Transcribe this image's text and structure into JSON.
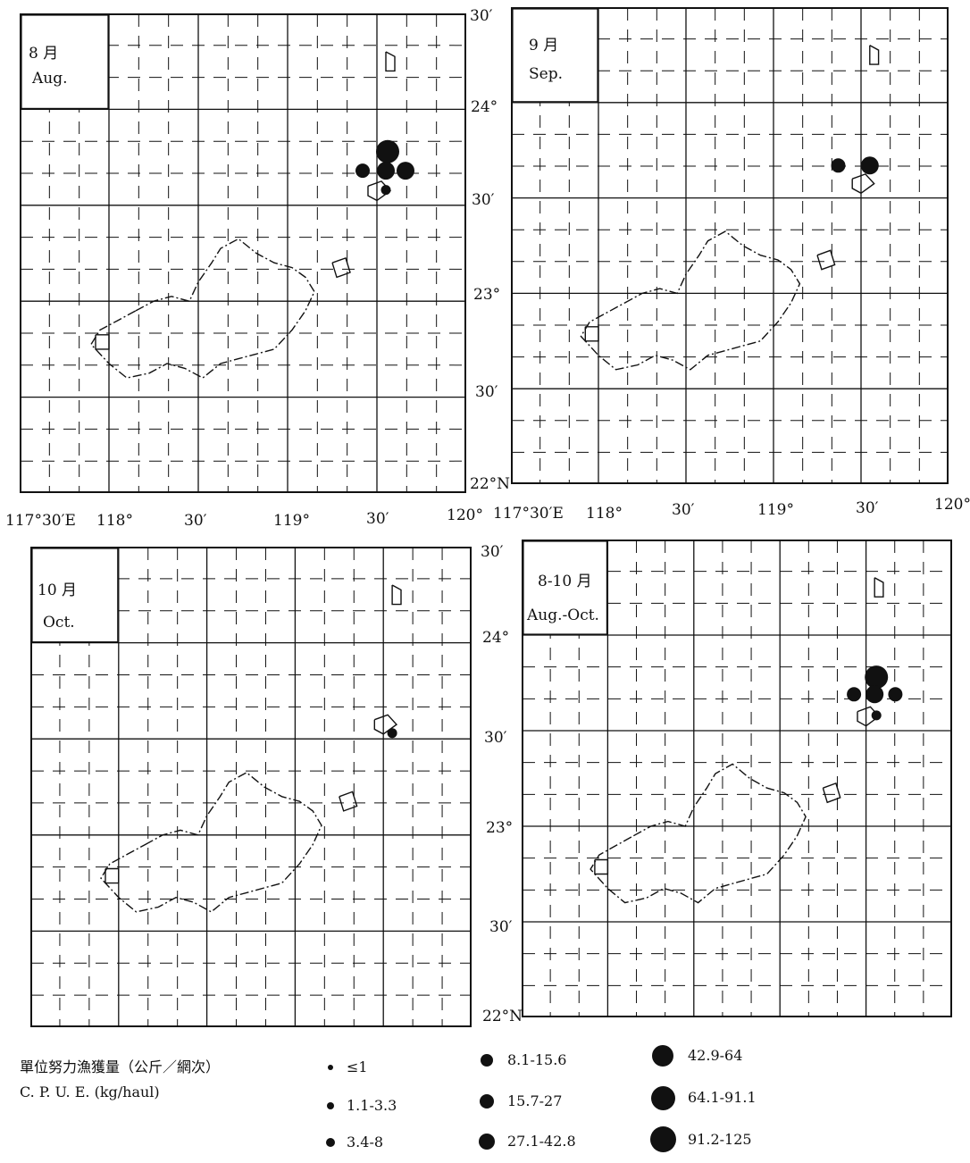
{
  "panels": [
    {
      "id": "aug",
      "title_zh": "8 月",
      "title_en": "Aug."
    },
    {
      "id": "sep",
      "title_zh": "9 月",
      "title_en": "Sep."
    },
    {
      "id": "oct",
      "title_zh": "10 月",
      "title_en": "Oct."
    },
    {
      "id": "augoct",
      "title_zh": "8-10 月",
      "title_en": "Aug.-Oct."
    }
  ],
  "lon_labels": {
    "top_row_left": [
      "117°30′E",
      "118°",
      "30′",
      "119°",
      "30′",
      "120°"
    ],
    "top_row_right": [
      "117°30′E",
      "118°",
      "30′",
      "119°",
      "30′",
      "120°"
    ]
  },
  "lat_labels": {
    "top": [
      "30′",
      "24°",
      "30′",
      "23°",
      "30′",
      "22°N"
    ],
    "bottom": [
      "30′",
      "24°",
      "30′",
      "23°",
      "30′",
      "22°N"
    ]
  },
  "legend": {
    "title_zh": "單位努力漁獲量（公斤／網次）",
    "title_en": "C. P. U. E. (kg/haul)",
    "classes": [
      "≤1",
      "1.1-3.3",
      "3.4-8",
      "8.1-15.6",
      "15.7-27",
      "27.1-42.8",
      "42.9-64",
      "64.1-91.1",
      "91.2-125"
    ]
  },
  "catch_points": {
    "aug": [
      {
        "lon": 119.56,
        "lat": 23.78,
        "class": "42.9-64"
      },
      {
        "lon": 119.42,
        "lat": 23.68,
        "class": "8.1-15.6"
      },
      {
        "lon": 119.55,
        "lat": 23.68,
        "class": "15.7-27"
      },
      {
        "lon": 119.66,
        "lat": 23.68,
        "class": "15.7-27"
      },
      {
        "lon": 119.55,
        "lat": 23.58,
        "class": "3.4-8"
      }
    ],
    "sep": [
      {
        "lon": 119.37,
        "lat": 23.67,
        "class": "8.1-15.6"
      },
      {
        "lon": 119.55,
        "lat": 23.67,
        "class": "15.7-27"
      }
    ],
    "oct": [
      {
        "lon": 119.55,
        "lat": 23.53,
        "class": "3.4-8"
      }
    ],
    "augoct": [
      {
        "lon": 119.56,
        "lat": 23.78,
        "class": "42.9-64"
      },
      {
        "lon": 119.43,
        "lat": 23.69,
        "class": "8.1-15.6"
      },
      {
        "lon": 119.55,
        "lat": 23.69,
        "class": "15.7-27"
      },
      {
        "lon": 119.67,
        "lat": 23.69,
        "class": "8.1-15.6"
      },
      {
        "lon": 119.56,
        "lat": 23.58,
        "class": "3.4-8"
      }
    ]
  },
  "colors": {
    "ink": "#111111",
    "paper": "#ffffff"
  }
}
